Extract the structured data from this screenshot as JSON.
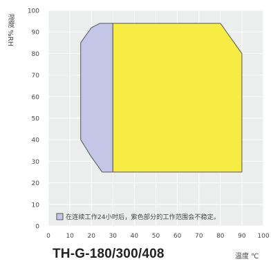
{
  "chart_data": {
    "type": "area",
    "title": "TH-G-180/300/408",
    "xlabel": "温度 ℃",
    "ylabel": "湿度 %RH",
    "xlim": [
      0,
      100
    ],
    "ylim": [
      0,
      100
    ],
    "x_ticks": [
      "0",
      "10",
      "20",
      "30",
      "40",
      "50",
      "60",
      "70",
      "80",
      "90",
      "100"
    ],
    "y_ticks": [
      "0",
      "10",
      "20",
      "30",
      "40",
      "50",
      "60",
      "70",
      "80",
      "90",
      "100"
    ],
    "grid": true,
    "series": [
      {
        "color": "#c3c6e6",
        "points": [
          [
            15,
            40
          ],
          [
            15,
            85
          ],
          [
            20,
            92
          ],
          [
            24,
            94
          ],
          [
            30,
            94
          ],
          [
            30,
            25
          ],
          [
            25,
            25
          ],
          [
            20,
            32
          ]
        ]
      },
      {
        "color": "#f7ec44",
        "points": [
          [
            30,
            94
          ],
          [
            80,
            94
          ],
          [
            90,
            80
          ],
          [
            90,
            25
          ],
          [
            30,
            25
          ]
        ]
      }
    ],
    "annotation": "在连续工作24小时后，紫色部分的工作范围会不稳定。"
  }
}
